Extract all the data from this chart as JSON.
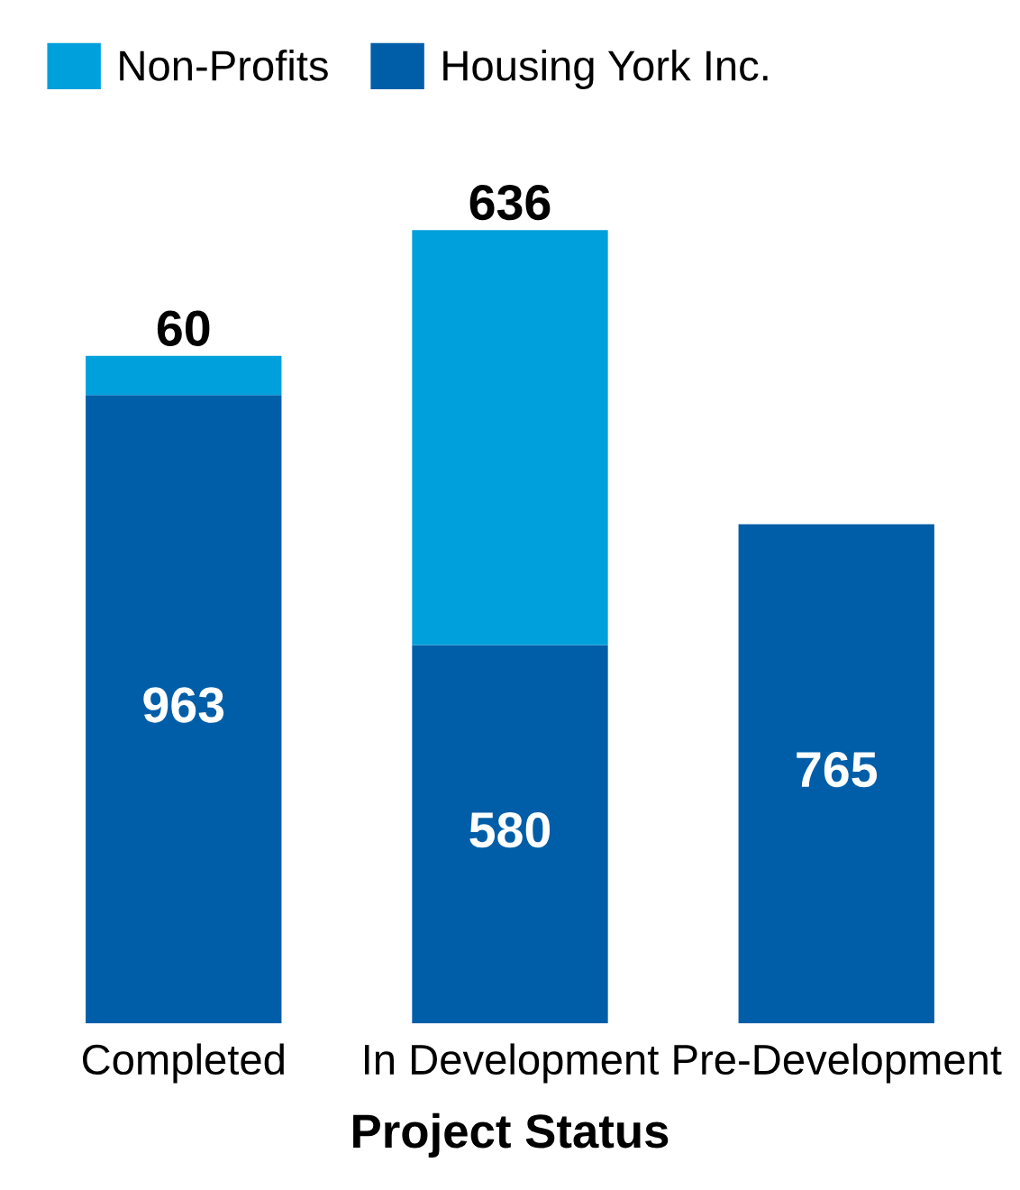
{
  "chart_data": {
    "type": "bar",
    "stacked": true,
    "xlabel": "Project Status",
    "categories": [
      "Completed",
      "In Development",
      "Pre-Development"
    ],
    "series": [
      {
        "name": "Housing York Inc.",
        "color": "#005ea8",
        "values": [
          963,
          580,
          765
        ]
      },
      {
        "name": "Non-Profits",
        "color": "#00a0dc",
        "values": [
          60,
          636,
          null
        ]
      }
    ],
    "data_labels": true,
    "legend": "top left",
    "grid": false
  }
}
